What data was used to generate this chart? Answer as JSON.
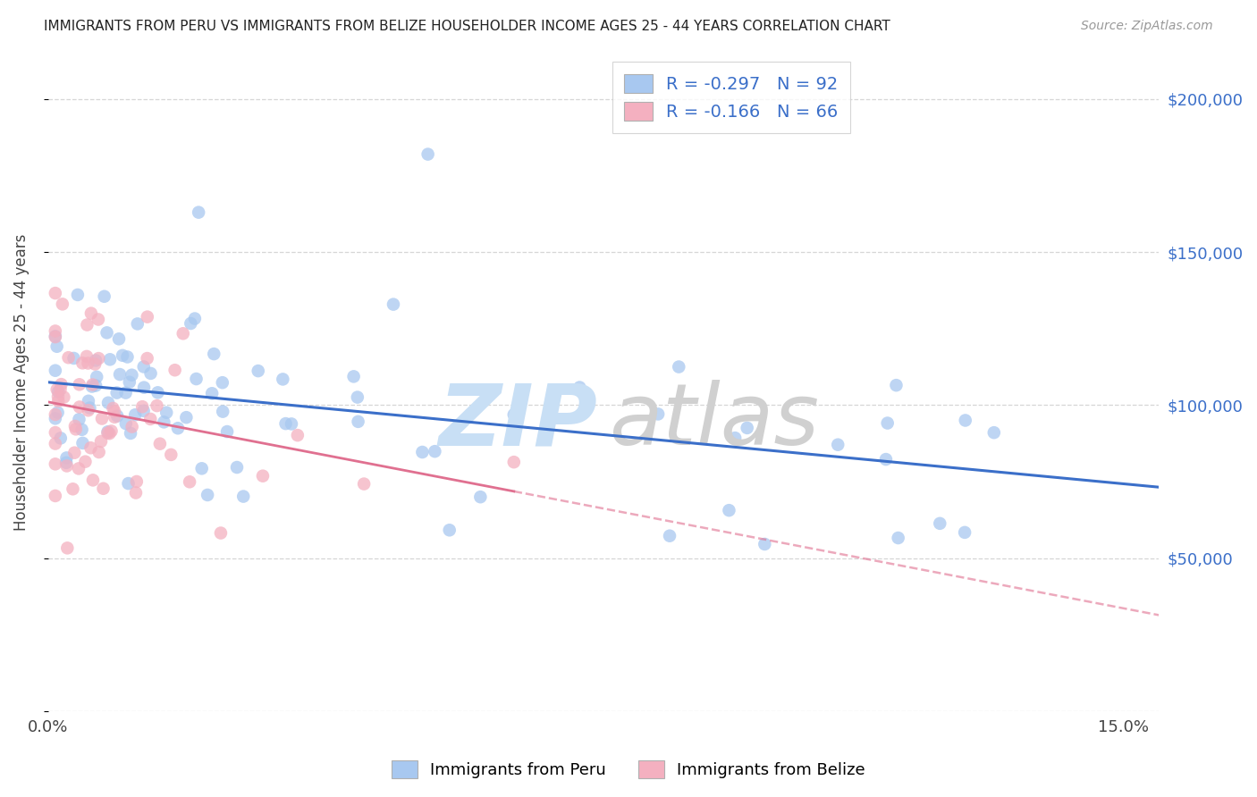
{
  "title": "IMMIGRANTS FROM PERU VS IMMIGRANTS FROM BELIZE HOUSEHOLDER INCOME AGES 25 - 44 YEARS CORRELATION CHART",
  "source": "Source: ZipAtlas.com",
  "ylabel": "Householder Income Ages 25 - 44 years",
  "xlim": [
    0.0,
    0.155
  ],
  "ylim": [
    0,
    215000
  ],
  "peru_color": "#a8c8f0",
  "peru_line_color": "#3b6fc9",
  "belize_color": "#f4b0c0",
  "belize_line_color": "#e07090",
  "watermark_zip_color": "#c8dff5",
  "watermark_atlas_color": "#d0d0d0",
  "legend_text_black": "R = ",
  "legend_peru_r": "-0.297",
  "legend_peru_n": "N = 92",
  "legend_belize_r": "-0.166",
  "legend_belize_n": "N = 66",
  "legend_blue": "#3b6fc9",
  "r_label_color": "#3b6fc9",
  "n_label_color": "#3b6fc9"
}
